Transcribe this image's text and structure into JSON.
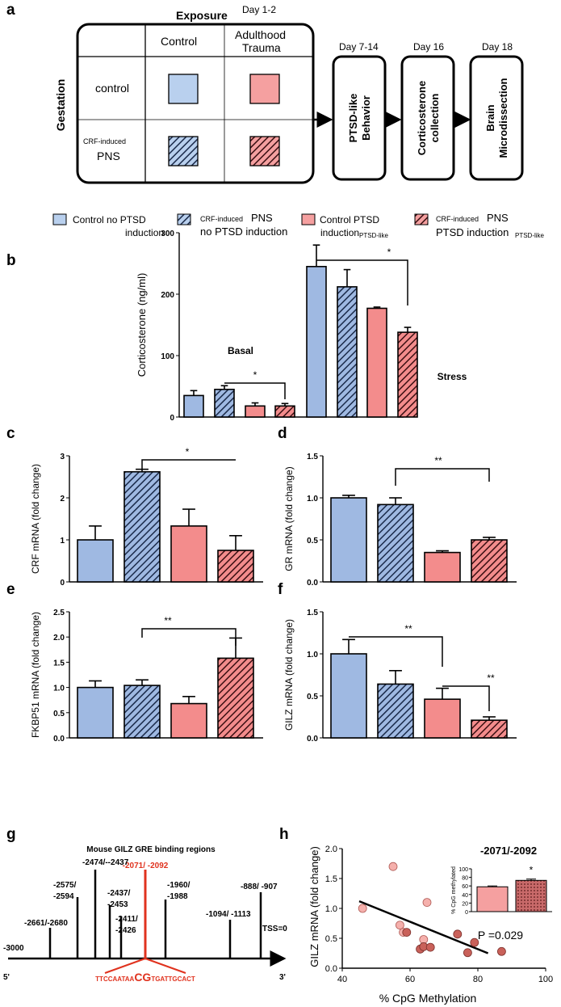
{
  "colors": {
    "light_blue": "#b9d0ee",
    "light_pink": "#f5a0a0",
    "bar_blue": "#9fb9e2",
    "bar_pink": "#f38c8c",
    "dot": "#d87a74",
    "inset_pink": "#f5a0a0",
    "inset_dark": "#c96a6a",
    "red": "#e0321e"
  },
  "panel_a": {
    "label": "a",
    "exposure": "Exposure",
    "day12": "Day 1-2",
    "gestation": "Gestation",
    "col_control": "Control",
    "col_trauma_1": "Adulthood",
    "col_trauma_2": "Trauma",
    "row_control": "control",
    "row_pns_1": "CRF-induced",
    "row_pns_2": "PNS",
    "boxes": [
      {
        "day": "Day 7-14",
        "lines": [
          "PTSD-like",
          "Behavior"
        ]
      },
      {
        "day": "Day 16",
        "lines": [
          "Corticosterone",
          "collection"
        ]
      },
      {
        "day": "Day 18",
        "lines": [
          "Brain",
          "Microdissection"
        ]
      }
    ]
  },
  "legend": [
    {
      "main": "Control no PTSD",
      "sub": "induction"
    },
    {
      "pre": "CRF-induced",
      "main": "PNS",
      "sub": "no PTSD induction"
    },
    {
      "main": "Control PTSD",
      "sub": "induction",
      "sub2": "PTSD-like"
    },
    {
      "pre": "CRF-induced",
      "main": "PNS",
      "sub": "PTSD induction",
      "sub2": "PTSD-like"
    }
  ],
  "chart_data": [
    {
      "panel": "b",
      "label": "b",
      "type": "bar",
      "ylabel": "Corticosterone (ng/ml)",
      "ylim": [
        0,
        300
      ],
      "yticks": [
        0,
        100,
        200,
        300
      ],
      "groups": [
        {
          "name": "Basal",
          "values": [
            35,
            45,
            18,
            18
          ],
          "errors": [
            8,
            6,
            5,
            4
          ]
        },
        {
          "name": "Stress",
          "values": [
            245,
            212,
            177,
            138
          ],
          "errors": [
            35,
            28,
            2,
            8
          ]
        }
      ],
      "sig": [
        "*",
        "*"
      ]
    },
    {
      "panel": "c",
      "label": "c",
      "type": "bar",
      "ylabel": "CRF mRNA (fold change)",
      "ylim": [
        0,
        3
      ],
      "yticks": [
        "0",
        "1",
        "2",
        "3"
      ],
      "values": [
        1.0,
        2.62,
        1.33,
        0.75
      ],
      "errors": [
        0.33,
        0.06,
        0.4,
        0.35
      ],
      "sig": [
        "*"
      ]
    },
    {
      "panel": "d",
      "label": "d",
      "type": "bar",
      "ylabel": "GR mRNA (fold change)",
      "ylim": [
        0,
        1.5
      ],
      "yticks": [
        "0.0",
        "0.5",
        "1.0",
        "1.5"
      ],
      "values": [
        1.0,
        0.92,
        0.35,
        0.5
      ],
      "errors": [
        0.03,
        0.08,
        0.02,
        0.03
      ],
      "sig": [
        "**"
      ]
    },
    {
      "panel": "e",
      "label": "e",
      "type": "bar",
      "ylabel": "FKBP51 mRNA (fold change)",
      "ylim": [
        0,
        2.5
      ],
      "yticks": [
        "0.0",
        "0.5",
        "1.0",
        "1.5",
        "2.0",
        "2.5"
      ],
      "values": [
        1.0,
        1.04,
        0.68,
        1.58
      ],
      "errors": [
        0.13,
        0.11,
        0.14,
        0.4
      ],
      "sig": [
        "**"
      ]
    },
    {
      "panel": "f",
      "label": "f",
      "type": "bar",
      "ylabel": "GILZ mRNA (fold change)",
      "ylim": [
        0,
        1.5
      ],
      "yticks": [
        "0.0",
        "0.5",
        "1.0",
        "1.5"
      ],
      "values": [
        1.0,
        0.64,
        0.46,
        0.21
      ],
      "errors": [
        0.17,
        0.16,
        0.13,
        0.04
      ],
      "sig": [
        "**",
        "**"
      ]
    },
    {
      "panel": "h",
      "label": "h",
      "type": "scatter",
      "xlabel": "% CpG Methylation",
      "ylabel": "GILZ mRNA (fold change)",
      "xlim": [
        40,
        100
      ],
      "ylim": [
        0,
        2.0
      ],
      "xticks": [
        "40",
        "60",
        "80",
        "100"
      ],
      "yticks": [
        "0.0",
        "0.5",
        "1.0",
        "1.5",
        "2.0"
      ],
      "points_light": [
        [
          46,
          1.0
        ],
        [
          55,
          1.7
        ],
        [
          57,
          0.72
        ],
        [
          58,
          0.6
        ],
        [
          64,
          0.48
        ],
        [
          65,
          1.1
        ]
      ],
      "points_dark": [
        [
          59,
          0.6
        ],
        [
          63,
          0.32
        ],
        [
          64,
          0.36
        ],
        [
          66,
          0.35
        ],
        [
          74,
          0.57
        ],
        [
          77,
          0.26
        ],
        [
          79,
          0.43
        ],
        [
          87,
          0.28
        ]
      ],
      "fit": [
        [
          45,
          1.12
        ],
        [
          83,
          0.25
        ]
      ],
      "p_text": "P =0.029",
      "inset": {
        "title": "-2071/-2092",
        "ylabel": "% CpG methylated",
        "ylim": [
          0,
          100
        ],
        "yticks": [
          "0",
          "20",
          "40",
          "60",
          "80",
          "100"
        ],
        "values": [
          58,
          73
        ],
        "errors": [
          2,
          3
        ],
        "sig": "*"
      }
    }
  ],
  "panel_g": {
    "label": "g",
    "title": "Mouse GILZ GRE binding regions",
    "red_label": "-2071/ -2092",
    "sites": [
      {
        "lines": [
          "-2661/-2680"
        ]
      },
      {
        "lines": [
          "-2575/",
          "-2594"
        ]
      },
      {
        "lines": [
          "-2474/--2437"
        ]
      },
      {
        "lines": [
          "-2437/",
          "-2453"
        ]
      },
      {
        "lines": [
          "-2411/",
          "-2426"
        ]
      },
      {
        "lines": [
          "-1960/",
          "-1988"
        ]
      },
      {
        "lines": [
          "-1094/ -1113"
        ]
      },
      {
        "lines": [
          "-888/ -907"
        ]
      }
    ],
    "start": "-3000",
    "tss": "TSS=0",
    "five": "5'",
    "three": "3'",
    "seq_left": "TTCCAATAA",
    "seq_mid": "CG",
    "seq_right": "TGATTGCACT"
  }
}
